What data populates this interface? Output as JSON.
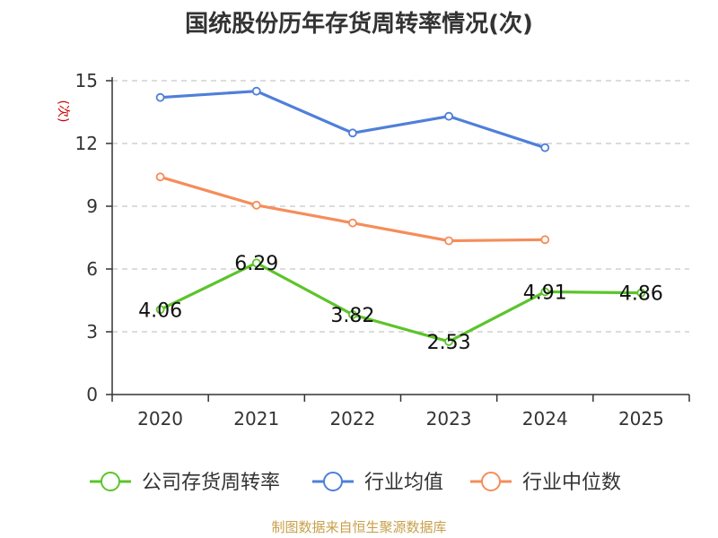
{
  "chart_data": {
    "type": "line",
    "title": "国统股份历年存货周转率情况(次)",
    "ylabel": "(次)",
    "xlabel": "",
    "categories": [
      "2020",
      "2021",
      "2022",
      "2023",
      "2024",
      "2025"
    ],
    "ylim": [
      0,
      15
    ],
    "yticks": [
      0,
      3,
      6,
      9,
      12,
      15
    ],
    "grid": true,
    "legend_position": "bottom",
    "series": [
      {
        "name": "公司存货周转率",
        "color": "#5cc42b",
        "values": [
          4.06,
          6.29,
          3.82,
          2.53,
          4.91,
          4.86
        ],
        "labels": [
          "4.06",
          "6.29",
          "3.82",
          "2.53",
          "4.91",
          "4.86"
        ],
        "show_labels": true
      },
      {
        "name": "行业均值",
        "color": "#4f7fd9",
        "values": [
          14.2,
          14.5,
          12.5,
          13.3,
          11.8,
          null
        ],
        "show_labels": false
      },
      {
        "name": "行业中位数",
        "color": "#f58d5a",
        "values": [
          10.4,
          9.05,
          8.2,
          7.35,
          7.4,
          null
        ],
        "show_labels": false
      }
    ]
  },
  "footer": "制图数据来自恒生聚源数据库"
}
